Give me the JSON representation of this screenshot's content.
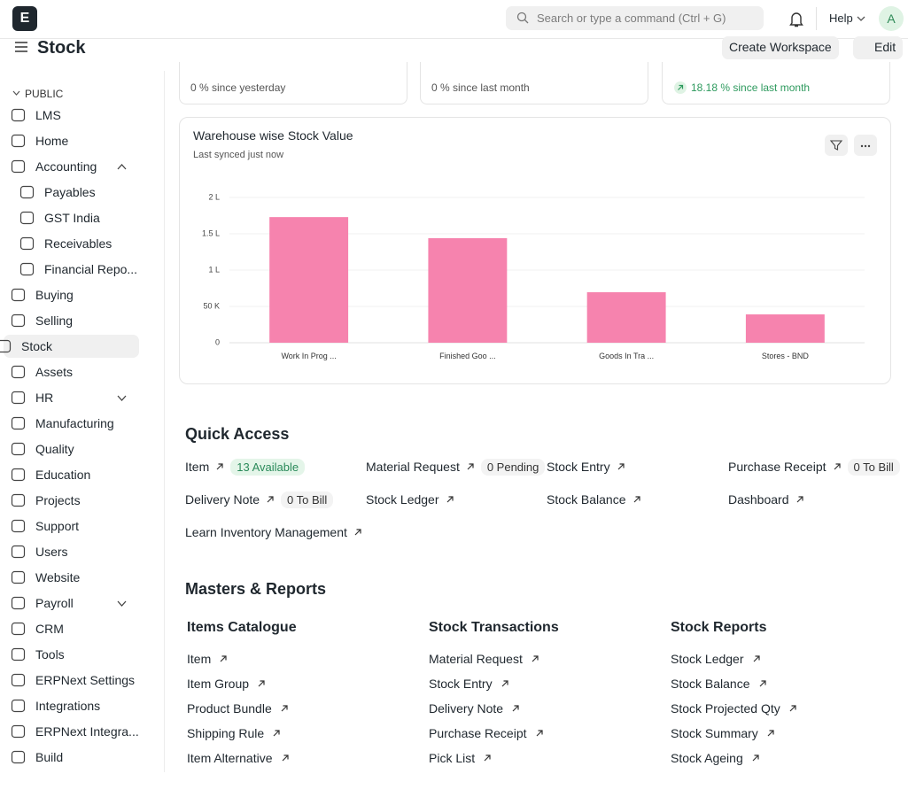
{
  "header": {
    "logo": "E",
    "search_placeholder": "Search or type a command (Ctrl + G)",
    "help": "Help",
    "avatar": "A"
  },
  "page": {
    "title": "Stock",
    "buttons": [
      "Create Workspace",
      "Edit"
    ]
  },
  "sidebar": {
    "section": "PUBLIC",
    "items": [
      "LMS",
      "Home",
      "Accounting",
      "Payables",
      "GST India",
      "Receivables",
      "Financial Repo...",
      "Buying",
      "Selling",
      "Stock",
      "Assets",
      "HR",
      "Manufacturing",
      "Quality",
      "Education",
      "Projects",
      "Support",
      "Users",
      "Website",
      "Payroll",
      "CRM",
      "Tools",
      "ERPNext Settings",
      "Integrations",
      "ERPNext Integra...",
      "Build"
    ]
  },
  "cards": [
    "0 % since yesterday",
    "0 % since last month",
    "18.18 % since last month"
  ],
  "chart_data": {
    "type": "bar",
    "title": "Warehouse wise Stock Value",
    "subtitle": "Last synced just now",
    "categories": [
      "Work In Prog ...",
      "Finished Goo ...",
      "Goods In Tra ...",
      "Stores - BND"
    ],
    "values": [
      173000,
      144000,
      69500,
      39000
    ],
    "color": "#f683ae",
    "ylim": [
      0,
      200000
    ],
    "yticks": [
      0,
      {
        "value": 50000,
        "label": "50 K"
      },
      {
        "value": 100000,
        "label": "1 L"
      },
      {
        "value": 150000,
        "label": "1.5 L"
      },
      {
        "value": 200000,
        "label": "2 L"
      }
    ],
    "grid": true
  },
  "quick_access": {
    "title": "Quick Access",
    "items": [
      {
        "label": "Item",
        "badge": "13 Available"
      },
      {
        "label": "Material Request",
        "badge": "0 Pending"
      },
      {
        "label": "Stock Entry"
      },
      {
        "label": "Purchase Receipt",
        "badge": "0 To Bill"
      },
      {
        "label": "Delivery Note",
        "badge": "0 To Bill"
      },
      {
        "label": "Stock Ledger"
      },
      {
        "label": "Stock Balance"
      },
      {
        "label": "Dashboard"
      },
      {
        "label": "Learn Inventory Management"
      }
    ]
  },
  "masters": {
    "title": "Masters & Reports",
    "columns": [
      {
        "title": "Items Catalogue",
        "links": [
          "Item",
          "Item Group",
          "Product Bundle",
          "Shipping Rule",
          "Item Alternative"
        ]
      },
      {
        "title": "Stock Transactions",
        "links": [
          "Material Request",
          "Stock Entry",
          "Delivery Note",
          "Purchase Receipt",
          "Pick List"
        ]
      },
      {
        "title": "Stock Reports",
        "links": [
          "Stock Ledger",
          "Stock Balance",
          "Stock Projected Qty",
          "Stock Summary",
          "Stock Ageing"
        ]
      }
    ]
  }
}
